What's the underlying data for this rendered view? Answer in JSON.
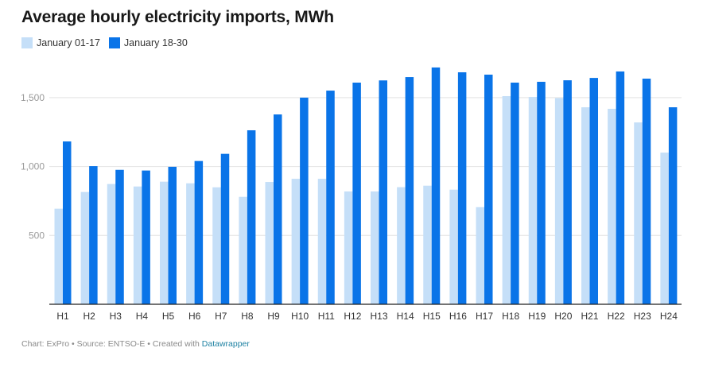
{
  "chart_data": {
    "type": "bar",
    "title": "Average hourly electricity imports, MWh",
    "xlabel": "",
    "ylabel": "",
    "ylim": [
      0,
      1750
    ],
    "yticks": [
      500,
      1000,
      1500
    ],
    "ytick_labels": [
      "500",
      "1,000",
      "1,500"
    ],
    "grid": true,
    "legend_position": "top-left",
    "categories": [
      "H1",
      "H2",
      "H3",
      "H4",
      "H5",
      "H6",
      "H7",
      "H8",
      "H9",
      "H10",
      "H11",
      "H12",
      "H13",
      "H14",
      "H15",
      "H16",
      "H17",
      "H18",
      "H19",
      "H20",
      "H21",
      "H22",
      "H23",
      "H24"
    ],
    "series": [
      {
        "name": "January 01-17",
        "color": "#c5dff8",
        "values": [
          694,
          815,
          873,
          855,
          890,
          878,
          849,
          780,
          888,
          911,
          911,
          819,
          819,
          850,
          861,
          832,
          705,
          1511,
          1505,
          1497,
          1430,
          1419,
          1320,
          1101
        ]
      },
      {
        "name": "January 18-30",
        "color": "#0a74e8",
        "values": [
          1182,
          1003,
          976,
          971,
          998,
          1040,
          1092,
          1263,
          1378,
          1500,
          1551,
          1609,
          1625,
          1649,
          1719,
          1684,
          1667,
          1609,
          1615,
          1626,
          1643,
          1690,
          1638,
          1430
        ]
      }
    ]
  },
  "legend": [
    {
      "label": "January 01-17",
      "color": "#c5dff8"
    },
    {
      "label": "January 18-30",
      "color": "#0a74e8"
    }
  ],
  "footer": {
    "text": "Chart: ExPro • Source: ENTSO-E • Created with ",
    "link": "Datawrapper"
  }
}
